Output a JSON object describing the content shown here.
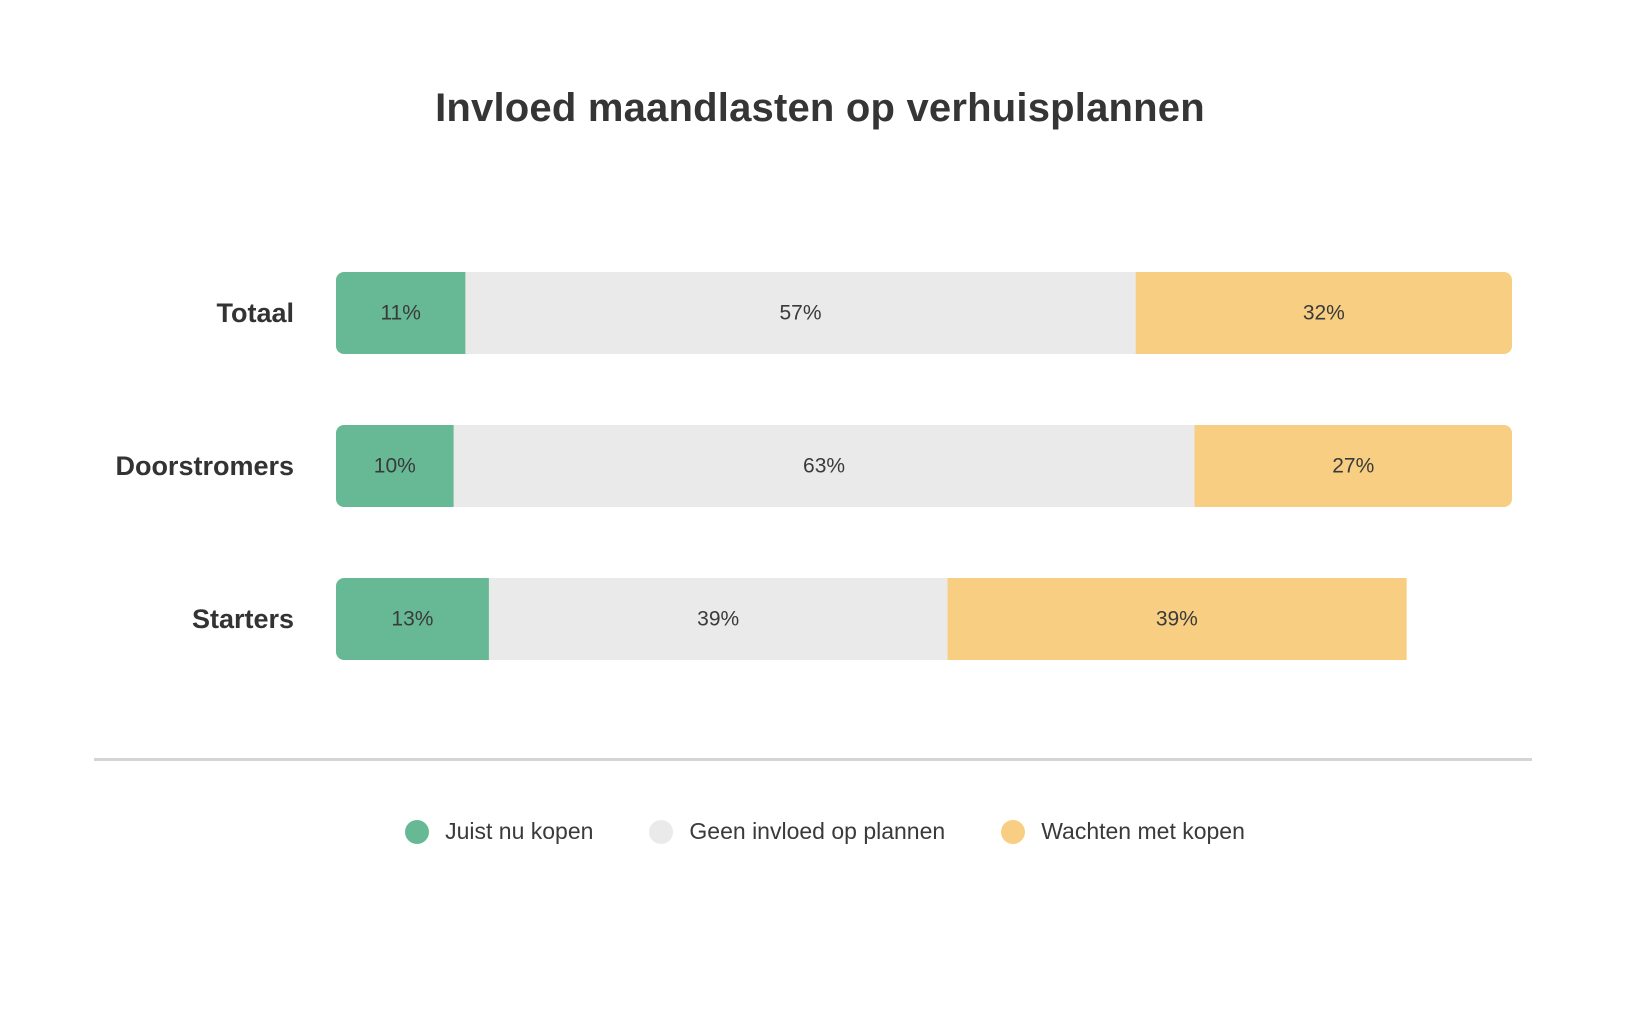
{
  "chart_data": {
    "type": "bar",
    "orientation": "horizontal",
    "stacked": true,
    "title": "Invloed maandlasten op verhuisplannen",
    "categories": [
      "Totaal",
      "Doorstromers",
      "Starters"
    ],
    "series": [
      {
        "name": "Juist nu kopen",
        "values": [
          11,
          10,
          13
        ],
        "labels": [
          "11%",
          "10%",
          "13%"
        ],
        "color": "#67b995"
      },
      {
        "name": "Geen invloed op plannen",
        "values": [
          57,
          63,
          39
        ],
        "labels": [
          "57%",
          "63%",
          "39%"
        ],
        "color": "#eaeaea"
      },
      {
        "name": "Wachten met kopen",
        "values": [
          32,
          27,
          39
        ],
        "labels": [
          "32%",
          "27%",
          "39%"
        ],
        "color": "#f8cf82"
      }
    ],
    "xlim": [
      0,
      100
    ],
    "unit": "%",
    "legend_position": "bottom-center",
    "grid": false
  }
}
